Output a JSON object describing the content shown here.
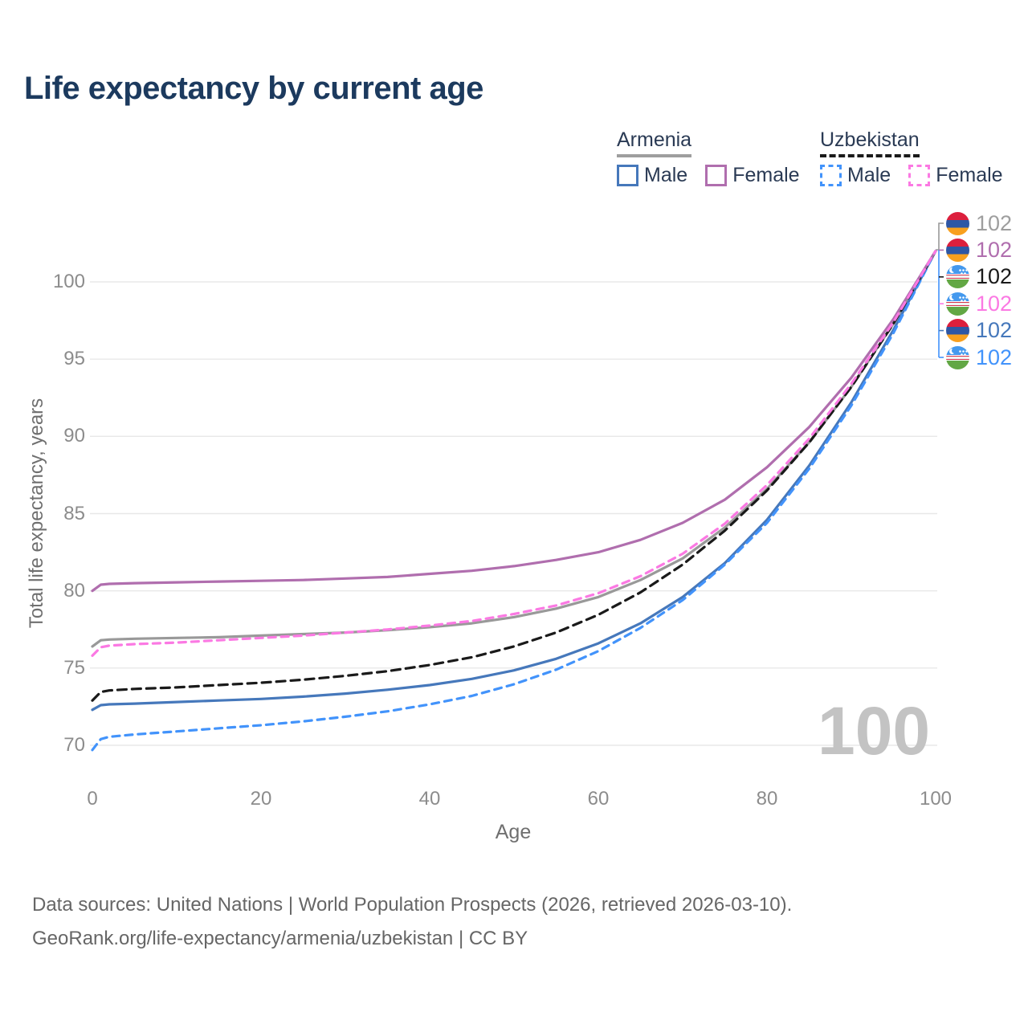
{
  "title": "Life expectancy by current age",
  "legend": {
    "groups": [
      {
        "id": "armenia",
        "label": "Armenia",
        "line_style": "solid",
        "underline_color": "#9e9e9e",
        "items": [
          {
            "id": "armenia-male",
            "label": "Male",
            "color": "#4678bb"
          },
          {
            "id": "armenia-female",
            "label": "Female",
            "color": "#b06eae"
          }
        ]
      },
      {
        "id": "uzbekistan",
        "label": "Uzbekistan",
        "line_style": "dashed",
        "underline_color": "#1a1a1a",
        "items": [
          {
            "id": "uzbekistan-male",
            "label": "Male",
            "color": "#4293fb"
          },
          {
            "id": "uzbekistan-female",
            "label": "Female",
            "color": "#fb79e3"
          }
        ]
      }
    ]
  },
  "chart_data": {
    "type": "line",
    "title": "Life expectancy by current age",
    "xlabel": "Age",
    "ylabel": "Total life expectancy, years",
    "xlim": [
      0,
      100
    ],
    "ylim": [
      68,
      103
    ],
    "x_ticks": [
      0,
      20,
      40,
      60,
      80,
      100
    ],
    "y_ticks": [
      70,
      75,
      80,
      85,
      90,
      95,
      100
    ],
    "grid": "horizontal",
    "legend_position": "top-right",
    "x": [
      0,
      1,
      2,
      5,
      10,
      15,
      20,
      25,
      30,
      35,
      40,
      45,
      50,
      55,
      60,
      65,
      70,
      75,
      80,
      85,
      90,
      95,
      100
    ],
    "series": [
      {
        "id": "armenia-both",
        "name": "Armenia - Both sexes",
        "country": "Armenia",
        "sex": "Both",
        "color": "#999999",
        "dash": "solid",
        "dash_pattern": null,
        "end_label": "102",
        "values": [
          76.4,
          76.8,
          76.85,
          76.9,
          76.95,
          77.0,
          77.1,
          77.2,
          77.3,
          77.45,
          77.65,
          77.9,
          78.3,
          78.85,
          79.6,
          80.7,
          82.1,
          84.1,
          86.6,
          89.6,
          93.2,
          97.3,
          102.0
        ]
      },
      {
        "id": "armenia-male",
        "name": "Armenia - Male",
        "country": "Armenia",
        "sex": "Male",
        "color": "#4678bb",
        "dash": "solid",
        "dash_pattern": null,
        "end_label": "102",
        "values": [
          72.3,
          72.6,
          72.65,
          72.7,
          72.8,
          72.9,
          73.0,
          73.15,
          73.35,
          73.6,
          73.9,
          74.3,
          74.85,
          75.6,
          76.6,
          77.9,
          79.6,
          81.8,
          84.6,
          88.1,
          92.2,
          96.9,
          102.0
        ]
      },
      {
        "id": "uzbekistan-male",
        "name": "Uzbekistan - Male",
        "country": "Uzbekistan",
        "sex": "Male",
        "color": "#4293fb",
        "dash": "dashed",
        "dash_pattern": "9 7",
        "end_label": "102",
        "values": [
          69.7,
          70.4,
          70.55,
          70.7,
          70.9,
          71.1,
          71.3,
          71.55,
          71.85,
          72.2,
          72.65,
          73.2,
          73.95,
          74.9,
          76.1,
          77.6,
          79.4,
          81.7,
          84.4,
          87.9,
          92.0,
          96.7,
          102.0
        ]
      },
      {
        "id": "uzbekistan-both",
        "name": "Uzbekistan - Both sexes",
        "country": "Uzbekistan",
        "sex": "Both",
        "color": "#1a1a1a",
        "dash": "dashed",
        "dash_pattern": "11 7",
        "end_label": "102",
        "values": [
          72.9,
          73.45,
          73.55,
          73.65,
          73.75,
          73.9,
          74.05,
          74.25,
          74.5,
          74.8,
          75.2,
          75.7,
          76.4,
          77.3,
          78.45,
          79.9,
          81.7,
          83.9,
          86.5,
          89.6,
          93.2,
          97.3,
          102.0
        ]
      },
      {
        "id": "armenia-female",
        "name": "Armenia - Female",
        "country": "Armenia",
        "sex": "Female",
        "color": "#b06eae",
        "dash": "solid",
        "dash_pattern": null,
        "end_label": "102",
        "values": [
          80.0,
          80.4,
          80.45,
          80.5,
          80.55,
          80.6,
          80.65,
          80.7,
          80.8,
          80.9,
          81.1,
          81.3,
          81.6,
          82.0,
          82.5,
          83.3,
          84.4,
          85.9,
          88.0,
          90.6,
          93.8,
          97.6,
          102.0
        ]
      },
      {
        "id": "uzbekistan-female",
        "name": "Uzbekistan - Female",
        "country": "Uzbekistan",
        "sex": "Female",
        "color": "#fb79e3",
        "dash": "dashed",
        "dash_pattern": "9 7",
        "end_label": "102",
        "values": [
          75.8,
          76.35,
          76.45,
          76.55,
          76.65,
          76.8,
          76.95,
          77.1,
          77.3,
          77.5,
          77.75,
          78.05,
          78.5,
          79.05,
          79.85,
          80.95,
          82.4,
          84.35,
          86.85,
          89.85,
          93.4,
          97.4,
          102.0
        ]
      }
    ],
    "annotation": "100"
  },
  "end_labels": [
    {
      "id": "armenia-both",
      "flag": "armenia",
      "value": "102",
      "color": "#9e9e9e"
    },
    {
      "id": "armenia-female",
      "flag": "armenia",
      "value": "102",
      "color": "#b06eae"
    },
    {
      "id": "uzbekistan-both",
      "flag": "uzbekistan",
      "value": "102",
      "color": "#1a1a1a"
    },
    {
      "id": "uzbekistan-female",
      "flag": "uzbekistan",
      "value": "102",
      "color": "#fb79e3"
    },
    {
      "id": "armenia-male",
      "flag": "armenia",
      "value": "102",
      "color": "#4678bb"
    },
    {
      "id": "uzbekistan-male",
      "flag": "uzbekistan",
      "value": "102",
      "color": "#4293fb"
    }
  ],
  "watermark": "100",
  "footer": {
    "line1": "Data sources: United Nations | World Population Prospects (2026, retrieved 2026-03-10).",
    "line2": "GeoRank.org/life-expectancy/armenia/uzbekistan | CC BY"
  }
}
